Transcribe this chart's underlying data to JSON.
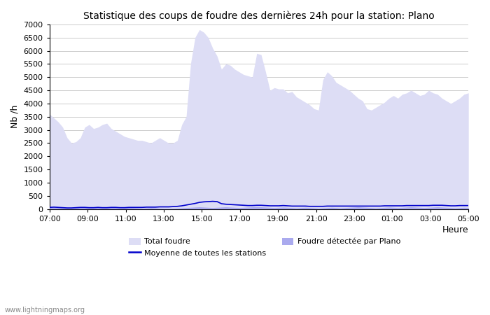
{
  "title": "Statistique des coups de foudre des dernières 24h pour la station: Plano",
  "ylabel": "Nb /h",
  "xlabel": "Heure",
  "watermark": "www.lightningmaps.org",
  "ylim": [
    0,
    7000
  ],
  "yticks": [
    0,
    500,
    1000,
    1500,
    2000,
    2500,
    3000,
    3500,
    4000,
    4500,
    5000,
    5500,
    6000,
    6500,
    7000
  ],
  "xtick_labels": [
    "07:00",
    "09:00",
    "11:00",
    "13:00",
    "15:00",
    "17:00",
    "19:00",
    "21:00",
    "23:00",
    "01:00",
    "03:00",
    "05:00"
  ],
  "background_color": "#ffffff",
  "plot_bg_color": "#ffffff",
  "grid_color": "#cccccc",
  "total_foudre_color": "#ddddf5",
  "foudre_plano_color": "#aaaaee",
  "moyenne_color": "#0000cc",
  "total_foudre_y": [
    3600,
    3450,
    3300,
    3100,
    2700,
    2500,
    2550,
    2700,
    3100,
    3200,
    3050,
    3100,
    3200,
    3250,
    3050,
    2950,
    2850,
    2750,
    2700,
    2650,
    2600,
    2600,
    2550,
    2500,
    2600,
    2700,
    2600,
    2500,
    2500,
    2600,
    3200,
    3500,
    5500,
    6500,
    6800,
    6700,
    6500,
    6100,
    5800,
    5300,
    5500,
    5450,
    5300,
    5200,
    5100,
    5050,
    5000,
    5900,
    5850,
    5200,
    4500,
    4600,
    4550,
    4550,
    4400,
    4450,
    4250,
    4150,
    4050,
    3950,
    3800,
    3750,
    4900,
    5200,
    5050,
    4800,
    4700,
    4600,
    4500,
    4350,
    4200,
    4100,
    3800,
    3750,
    3850,
    3950,
    4050,
    4200,
    4300,
    4200,
    4350,
    4400,
    4500,
    4400,
    4300,
    4350,
    4500,
    4400,
    4350,
    4200,
    4100,
    4000,
    4100,
    4200,
    4350,
    4400
  ],
  "foudre_plano_y": [
    80,
    80,
    60,
    50,
    40,
    30,
    50,
    60,
    70,
    60,
    50,
    60,
    50,
    60,
    60,
    50,
    40,
    50,
    60,
    50,
    40,
    30,
    40,
    50,
    40,
    30,
    20,
    20,
    20,
    30,
    40,
    50,
    60,
    70,
    80,
    70,
    60,
    50,
    60,
    70,
    80,
    70,
    60,
    50,
    60,
    70,
    80,
    90,
    80,
    70,
    60,
    50,
    60,
    70,
    60,
    50,
    40,
    50,
    60,
    50,
    40,
    30,
    40,
    50,
    60,
    50,
    40,
    50,
    60,
    70,
    80,
    70,
    60,
    50,
    40,
    50,
    60,
    70,
    60,
    50,
    60,
    70,
    80,
    70,
    60,
    50,
    60,
    70,
    80,
    70,
    60,
    50,
    40,
    50,
    60,
    50
  ],
  "moyenne_y": [
    60,
    70,
    60,
    50,
    40,
    40,
    50,
    60,
    60,
    50,
    50,
    60,
    50,
    50,
    60,
    60,
    50,
    50,
    60,
    60,
    60,
    60,
    70,
    70,
    70,
    80,
    80,
    80,
    90,
    100,
    120,
    150,
    180,
    210,
    250,
    270,
    280,
    290,
    280,
    200,
    180,
    170,
    160,
    150,
    140,
    130,
    130,
    140,
    140,
    130,
    120,
    120,
    120,
    130,
    120,
    110,
    110,
    110,
    110,
    100,
    100,
    100,
    100,
    110,
    110,
    110,
    110,
    110,
    110,
    110,
    110,
    110,
    110,
    110,
    110,
    110,
    120,
    120,
    120,
    120,
    120,
    130,
    130,
    130,
    130,
    130,
    130,
    140,
    140,
    140,
    130,
    120,
    120,
    130,
    130,
    130
  ]
}
